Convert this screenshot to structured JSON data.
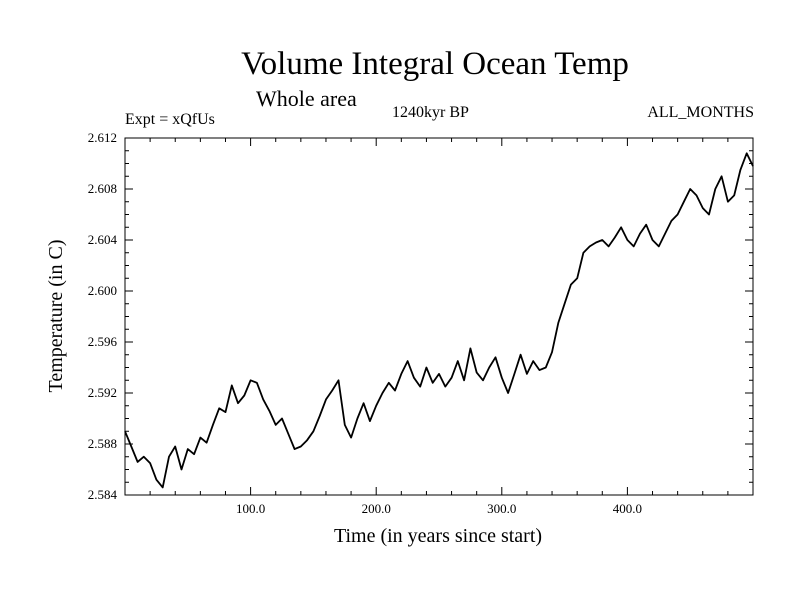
{
  "header": {
    "title": "Volume Integral Ocean Temp",
    "subtitle": "Whole area",
    "experiment": "Expt = xQfUs",
    "period": "1240kyr BP",
    "months": "ALL_MONTHS"
  },
  "chart_data": {
    "type": "line",
    "title": "Volume Integral Ocean Temp",
    "subtitle": "Whole area",
    "xlabel": "Time (in years since start)",
    "ylabel": "Temperature (in C)",
    "xlim": [
      0,
      500
    ],
    "ylim": [
      2.584,
      2.612
    ],
    "x_major_ticks": [
      100,
      200,
      300,
      400
    ],
    "x_tick_labels": [
      "100.0",
      "200.0",
      "300.0",
      "400.0"
    ],
    "y_major_ticks": [
      2.584,
      2.588,
      2.592,
      2.596,
      2.6,
      2.604,
      2.608,
      2.612
    ],
    "y_tick_labels": [
      "2.584",
      "2.588",
      "2.592",
      "2.596",
      "2.600",
      "2.604",
      "2.608",
      "2.612"
    ],
    "grid": false,
    "line_color": "#000000",
    "series": [
      {
        "name": "Volume Integral Ocean Temp",
        "x": [
          0,
          5,
          10,
          15,
          20,
          25,
          30,
          35,
          40,
          45,
          50,
          55,
          60,
          65,
          70,
          75,
          80,
          85,
          90,
          95,
          100,
          105,
          110,
          115,
          120,
          125,
          130,
          135,
          140,
          145,
          150,
          155,
          160,
          165,
          170,
          175,
          180,
          185,
          190,
          195,
          200,
          205,
          210,
          215,
          220,
          225,
          230,
          235,
          240,
          245,
          250,
          255,
          260,
          265,
          270,
          275,
          280,
          285,
          290,
          295,
          300,
          305,
          310,
          315,
          320,
          325,
          330,
          335,
          340,
          345,
          350,
          355,
          360,
          365,
          370,
          375,
          380,
          385,
          390,
          395,
          400,
          405,
          410,
          415,
          420,
          425,
          430,
          435,
          440,
          445,
          450,
          455,
          460,
          465,
          470,
          475,
          480,
          485,
          490,
          495,
          500
        ],
        "values": [
          2.589,
          2.5878,
          2.5866,
          2.587,
          2.5865,
          2.5852,
          2.5846,
          2.587,
          2.5878,
          2.586,
          2.5876,
          2.5872,
          2.5885,
          2.5881,
          2.5895,
          2.5908,
          2.5905,
          2.5926,
          2.5912,
          2.5918,
          2.593,
          2.5928,
          2.5915,
          2.5906,
          2.5895,
          2.59,
          2.5888,
          2.5876,
          2.5878,
          2.5883,
          2.589,
          2.5902,
          2.5915,
          2.5922,
          2.593,
          2.5895,
          2.5885,
          2.59,
          2.5912,
          2.5898,
          2.591,
          2.592,
          2.5928,
          2.5922,
          2.5935,
          2.5945,
          2.5932,
          2.5925,
          2.594,
          2.5928,
          2.5935,
          2.5925,
          2.5932,
          2.5945,
          2.593,
          2.5955,
          2.5936,
          2.593,
          2.594,
          2.5948,
          2.5932,
          2.592,
          2.5935,
          2.595,
          2.5935,
          2.5945,
          2.5938,
          2.594,
          2.5952,
          2.5975,
          2.599,
          2.6005,
          2.601,
          2.603,
          2.6035,
          2.6038,
          2.604,
          2.6035,
          2.6042,
          2.605,
          2.604,
          2.6035,
          2.6045,
          2.6052,
          2.604,
          2.6035,
          2.6045,
          2.6055,
          2.606,
          2.607,
          2.608,
          2.6075,
          2.6065,
          2.606,
          2.608,
          2.609,
          2.607,
          2.6075,
          2.6095,
          2.6108,
          2.6098
        ]
      }
    ]
  }
}
